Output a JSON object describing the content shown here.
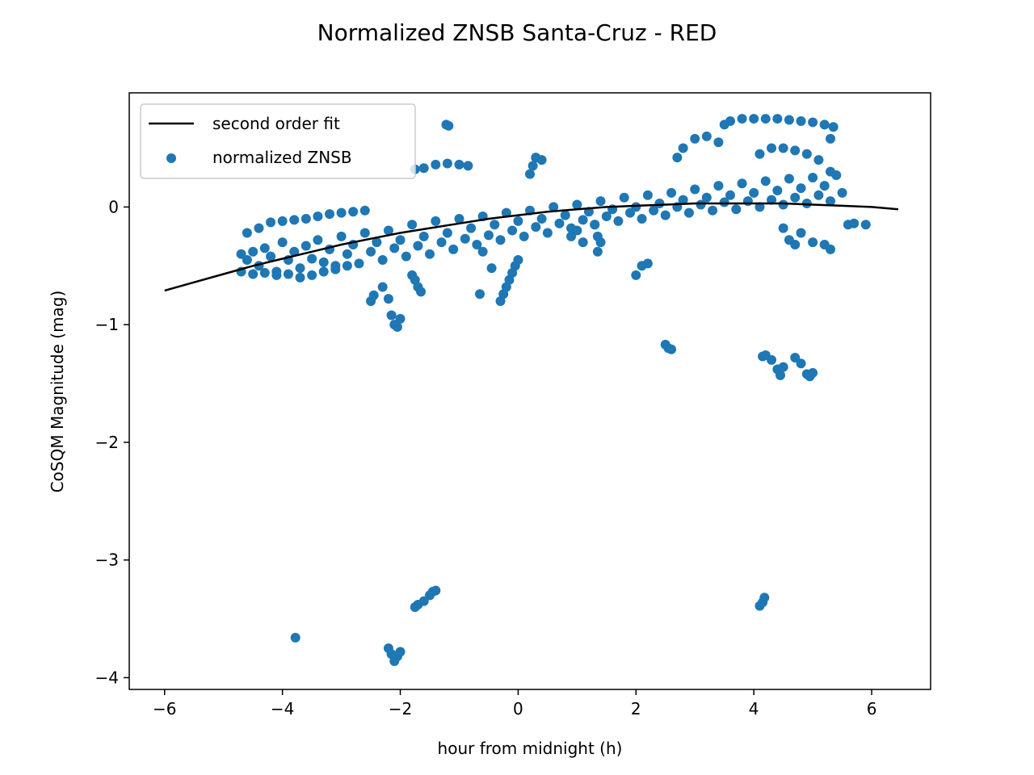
{
  "chart_data": {
    "type": "scatter",
    "title": "Normalized ZNSB Santa-Cruz - RED",
    "xlabel": "hour from midnight (h)",
    "ylabel": "CoSQM Magnitude (mag)",
    "xlim": [
      -6.6,
      7.0
    ],
    "ylim": [
      -4.1,
      0.97
    ],
    "xticks": [
      -6,
      -4,
      -2,
      0,
      2,
      4,
      6
    ],
    "xtick_labels": [
      "−6",
      "−4",
      "−2",
      "0",
      "2",
      "4",
      "6"
    ],
    "yticks": [
      0,
      -1,
      -2,
      -3,
      -4
    ],
    "ytick_labels": [
      "0",
      "−1",
      "−2",
      "−3",
      "−4"
    ],
    "grid": false,
    "legend_position": "upper-left",
    "colors": {
      "scatter": "#1f77b4",
      "fit": "#000000"
    },
    "series": [
      {
        "name": "second order fit",
        "kind": "line",
        "x": [
          -6.0,
          -5.5,
          -5.0,
          -4.5,
          -4.0,
          -3.5,
          -3.0,
          -2.5,
          -2.0,
          -1.5,
          -1.0,
          -0.5,
          0.0,
          0.5,
          1.0,
          1.5,
          2.0,
          2.5,
          3.0,
          3.5,
          4.0,
          4.5,
          5.0,
          5.5,
          6.0,
          6.45
        ],
        "y": [
          -0.71,
          -0.64,
          -0.57,
          -0.5,
          -0.44,
          -0.38,
          -0.32,
          -0.27,
          -0.22,
          -0.18,
          -0.14,
          -0.1,
          -0.07,
          -0.04,
          -0.02,
          0.0,
          0.01,
          0.02,
          0.03,
          0.03,
          0.03,
          0.03,
          0.02,
          0.01,
          0.0,
          -0.02
        ]
      },
      {
        "name": "normalized ZNSB",
        "kind": "scatter",
        "points": [
          [
            -4.7,
            -0.4
          ],
          [
            -4.6,
            -0.45
          ],
          [
            -4.5,
            -0.38
          ],
          [
            -4.4,
            -0.5
          ],
          [
            -4.3,
            -0.35
          ],
          [
            -4.2,
            -0.42
          ],
          [
            -4.1,
            -0.55
          ],
          [
            -4.0,
            -0.3
          ],
          [
            -3.9,
            -0.45
          ],
          [
            -3.8,
            -0.38
          ],
          [
            -3.7,
            -0.52
          ],
          [
            -3.6,
            -0.33
          ],
          [
            -3.5,
            -0.44
          ],
          [
            -3.4,
            -0.28
          ],
          [
            -3.3,
            -0.47
          ],
          [
            -3.2,
            -0.36
          ],
          [
            -3.1,
            -0.5
          ],
          [
            -3.0,
            -0.25
          ],
          [
            -2.9,
            -0.4
          ],
          [
            -2.8,
            -0.32
          ],
          [
            -2.7,
            -0.48
          ],
          [
            -2.6,
            -0.22
          ],
          [
            -2.5,
            -0.38
          ],
          [
            -2.4,
            -0.3
          ],
          [
            -2.3,
            -0.45
          ],
          [
            -2.2,
            -0.2
          ],
          [
            -2.1,
            -0.35
          ],
          [
            -2.0,
            -0.28
          ],
          [
            -1.9,
            -0.42
          ],
          [
            -1.8,
            -0.15
          ],
          [
            -1.7,
            -0.33
          ],
          [
            -1.6,
            -0.25
          ],
          [
            -1.5,
            -0.4
          ],
          [
            -1.4,
            -0.12
          ],
          [
            -1.3,
            -0.3
          ],
          [
            -1.2,
            -0.22
          ],
          [
            -1.1,
            -0.36
          ],
          [
            -1.0,
            -0.1
          ],
          [
            -0.9,
            -0.27
          ],
          [
            -0.8,
            -0.18
          ],
          [
            -0.7,
            -0.32
          ],
          [
            -0.6,
            -0.08
          ],
          [
            -0.5,
            -0.24
          ],
          [
            -0.4,
            -0.15
          ],
          [
            -0.3,
            -0.28
          ],
          [
            -0.2,
            -0.05
          ],
          [
            -0.1,
            -0.2
          ],
          [
            0.0,
            -0.12
          ],
          [
            0.1,
            -0.25
          ],
          [
            0.2,
            -0.03
          ],
          [
            0.3,
            -0.17
          ],
          [
            0.4,
            -0.1
          ],
          [
            0.5,
            -0.22
          ],
          [
            0.6,
            0.0
          ],
          [
            0.7,
            -0.14
          ],
          [
            0.8,
            -0.07
          ],
          [
            0.9,
            -0.18
          ],
          [
            1.0,
            0.02
          ],
          [
            1.1,
            -0.11
          ],
          [
            1.2,
            -0.04
          ],
          [
            1.3,
            -0.15
          ],
          [
            1.4,
            0.05
          ],
          [
            1.5,
            -0.08
          ],
          [
            1.6,
            -0.02
          ],
          [
            1.7,
            -0.12
          ],
          [
            1.8,
            0.08
          ],
          [
            1.9,
            -0.05
          ],
          [
            2.0,
            0.0
          ],
          [
            2.1,
            -0.1
          ],
          [
            2.2,
            0.1
          ],
          [
            2.3,
            -0.03
          ],
          [
            2.4,
            0.03
          ],
          [
            2.5,
            -0.07
          ],
          [
            2.6,
            0.12
          ],
          [
            2.7,
            0.0
          ],
          [
            2.8,
            0.06
          ],
          [
            2.9,
            -0.05
          ],
          [
            3.0,
            0.15
          ],
          [
            3.1,
            0.02
          ],
          [
            3.2,
            0.08
          ],
          [
            3.3,
            -0.03
          ],
          [
            3.4,
            0.18
          ],
          [
            3.5,
            0.04
          ],
          [
            3.6,
            0.1
          ],
          [
            3.7,
            -0.02
          ],
          [
            3.8,
            0.2
          ],
          [
            3.9,
            0.05
          ],
          [
            4.0,
            0.12
          ],
          [
            4.1,
            0.0
          ],
          [
            4.2,
            0.22
          ],
          [
            4.3,
            0.06
          ],
          [
            4.4,
            0.14
          ],
          [
            4.5,
            0.02
          ],
          [
            4.6,
            0.24
          ],
          [
            4.7,
            0.08
          ],
          [
            4.8,
            0.16
          ],
          [
            4.9,
            0.03
          ],
          [
            5.0,
            0.25
          ],
          [
            5.1,
            0.1
          ],
          [
            5.2,
            0.18
          ],
          [
            5.3,
            0.05
          ],
          [
            5.4,
            0.27
          ],
          [
            5.5,
            0.12
          ],
          [
            -4.6,
            -0.22
          ],
          [
            -4.4,
            -0.18
          ],
          [
            -4.2,
            -0.13
          ],
          [
            -4.0,
            -0.12
          ],
          [
            -3.8,
            -0.11
          ],
          [
            -3.6,
            -0.1
          ],
          [
            -3.4,
            -0.08
          ],
          [
            -3.2,
            -0.06
          ],
          [
            -3.0,
            -0.05
          ],
          [
            -2.8,
            -0.04
          ],
          [
            -2.6,
            -0.03
          ],
          [
            -4.7,
            -0.55
          ],
          [
            -4.5,
            -0.57
          ],
          [
            -4.3,
            -0.56
          ],
          [
            -4.1,
            -0.58
          ],
          [
            -3.9,
            -0.57
          ],
          [
            -3.7,
            -0.6
          ],
          [
            -3.5,
            -0.58
          ],
          [
            -3.3,
            -0.55
          ],
          [
            -3.1,
            -0.53
          ],
          [
            -2.9,
            -0.5
          ],
          [
            -2.5,
            -0.8
          ],
          [
            -2.45,
            -0.75
          ],
          [
            -2.3,
            -0.68
          ],
          [
            -2.2,
            -0.78
          ],
          [
            -2.15,
            -0.92
          ],
          [
            -2.1,
            -1.0
          ],
          [
            -2.05,
            -1.02
          ],
          [
            -2.0,
            -0.95
          ],
          [
            -1.8,
            -0.58
          ],
          [
            -1.75,
            -0.62
          ],
          [
            -1.7,
            -0.68
          ],
          [
            -1.65,
            -0.72
          ],
          [
            -1.75,
            0.32
          ],
          [
            -1.6,
            0.33
          ],
          [
            -1.4,
            0.36
          ],
          [
            -1.2,
            0.37
          ],
          [
            -1.0,
            0.36
          ],
          [
            -0.85,
            0.35
          ],
          [
            -1.22,
            0.7
          ],
          [
            -1.18,
            0.69
          ],
          [
            -0.6,
            -0.38
          ],
          [
            -0.45,
            -0.52
          ],
          [
            -0.65,
            -0.74
          ],
          [
            -0.3,
            -0.8
          ],
          [
            -0.25,
            -0.74
          ],
          [
            -0.2,
            -0.68
          ],
          [
            -0.15,
            -0.62
          ],
          [
            -0.1,
            -0.56
          ],
          [
            -0.05,
            -0.5
          ],
          [
            0.0,
            -0.45
          ],
          [
            0.2,
            0.28
          ],
          [
            0.25,
            0.35
          ],
          [
            0.3,
            0.42
          ],
          [
            0.4,
            0.4
          ],
          [
            0.9,
            -0.25
          ],
          [
            1.0,
            -0.2
          ],
          [
            1.1,
            -0.3
          ],
          [
            1.3,
            -0.15
          ],
          [
            1.35,
            -0.25
          ],
          [
            2.0,
            -0.58
          ],
          [
            2.1,
            -0.5
          ],
          [
            2.2,
            -0.48
          ],
          [
            1.4,
            -0.3
          ],
          [
            1.35,
            -0.38
          ],
          [
            2.5,
            -1.17
          ],
          [
            2.55,
            -1.2
          ],
          [
            2.6,
            -1.21
          ],
          [
            2.7,
            0.42
          ],
          [
            2.8,
            0.5
          ],
          [
            3.0,
            0.58
          ],
          [
            3.2,
            0.6
          ],
          [
            3.4,
            0.55
          ],
          [
            3.5,
            0.7
          ],
          [
            3.6,
            0.73
          ],
          [
            3.8,
            0.75
          ],
          [
            4.0,
            0.75
          ],
          [
            4.2,
            0.75
          ],
          [
            4.4,
            0.75
          ],
          [
            4.6,
            0.74
          ],
          [
            4.8,
            0.73
          ],
          [
            5.0,
            0.72
          ],
          [
            5.2,
            0.7
          ],
          [
            5.35,
            0.68
          ],
          [
            5.3,
            0.58
          ],
          [
            4.1,
            0.45
          ],
          [
            4.3,
            0.5
          ],
          [
            4.5,
            0.5
          ],
          [
            4.7,
            0.48
          ],
          [
            4.9,
            0.45
          ],
          [
            5.1,
            0.4
          ],
          [
            5.3,
            0.3
          ],
          [
            4.15,
            -1.27
          ],
          [
            4.2,
            -1.26
          ],
          [
            4.3,
            -1.3
          ],
          [
            4.4,
            -1.38
          ],
          [
            4.45,
            -1.43
          ],
          [
            4.5,
            -1.36
          ],
          [
            4.7,
            -1.28
          ],
          [
            4.8,
            -1.33
          ],
          [
            4.9,
            -1.42
          ],
          [
            4.95,
            -1.44
          ],
          [
            5.0,
            -1.41
          ],
          [
            4.5,
            -0.18
          ],
          [
            4.6,
            -0.28
          ],
          [
            4.7,
            -0.32
          ],
          [
            4.8,
            -0.22
          ],
          [
            5.0,
            -0.3
          ],
          [
            5.2,
            -0.32
          ],
          [
            5.3,
            -0.36
          ],
          [
            5.6,
            -0.15
          ],
          [
            5.7,
            -0.14
          ],
          [
            5.9,
            -0.15
          ],
          [
            -3.78,
            -3.66
          ],
          [
            -2.2,
            -3.75
          ],
          [
            -2.15,
            -3.8
          ],
          [
            -2.1,
            -3.86
          ],
          [
            -2.05,
            -3.82
          ],
          [
            -2.0,
            -3.78
          ],
          [
            -1.75,
            -3.4
          ],
          [
            -1.7,
            -3.38
          ],
          [
            -1.6,
            -3.35
          ],
          [
            -1.5,
            -3.3
          ],
          [
            -1.45,
            -3.27
          ],
          [
            -1.4,
            -3.26
          ],
          [
            4.1,
            -3.39
          ],
          [
            4.15,
            -3.36
          ],
          [
            4.18,
            -3.32
          ]
        ]
      }
    ]
  }
}
